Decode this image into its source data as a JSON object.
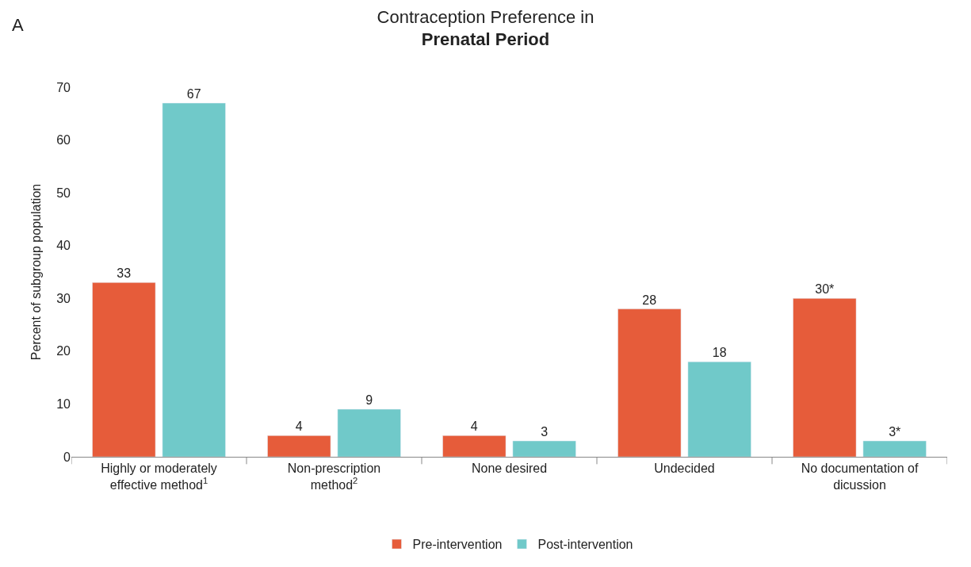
{
  "chart_data": {
    "type": "bar",
    "title": "Contraception Preference in",
    "subtitle": "Prenatal Period",
    "annotations": [
      "A"
    ],
    "ylabel": "Percent of subgroup population",
    "categories": [
      "Highly or moderately\neffective method$^{1}$",
      "Non-prescription\nmethod$^{2}$",
      "None desired",
      "Undecided",
      "No documentation of\ndicussion"
    ],
    "series": [
      {
        "name": "Pre-intervention",
        "color": "#e65c3a",
        "values": [
          33,
          4,
          4,
          28,
          30
        ],
        "value_labels": [
          "33",
          "4",
          "4",
          "28",
          "30*"
        ]
      },
      {
        "name": "Post-intervention",
        "color": "#70c9c9",
        "values": [
          67,
          9,
          3,
          18,
          3
        ],
        "value_labels": [
          "67",
          "9",
          "3",
          "18",
          "3*"
        ]
      }
    ],
    "ylim": [
      0,
      70
    ],
    "yticks": [
      0,
      10,
      20,
      30,
      40,
      50,
      60,
      70
    ],
    "legend": "bottom"
  }
}
